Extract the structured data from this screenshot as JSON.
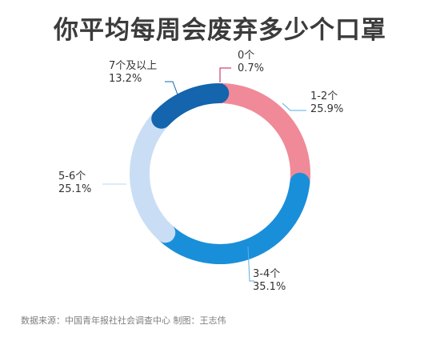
{
  "chart_data": {
    "type": "pie",
    "style": "donut",
    "title": "你平均每周会废弃多少个口罩",
    "categories": [
      "0个",
      "1-2个",
      "3-4个",
      "5-6个",
      "7个及以上"
    ],
    "values": [
      0.7,
      25.9,
      35.1,
      25.1,
      13.2
    ],
    "value_labels": [
      "0.7%",
      "25.9%",
      "35.1%",
      "25.1%",
      "13.2%"
    ],
    "colors": [
      "#c2185b",
      "#f08a98",
      "#1a8fd9",
      "#c9def5",
      "#1464ae"
    ],
    "start_angle_deg": 0,
    "direction": "clockwise"
  },
  "footer": {
    "source": "数据来源：中国青年报社社会调查中心  制图：王志伟"
  }
}
